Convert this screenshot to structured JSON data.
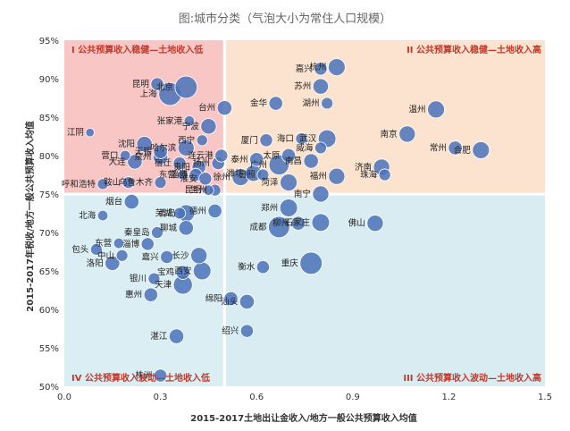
{
  "chart_data": {
    "type": "scatter",
    "title": "图:城市分类（气泡大小为常住人口规模）",
    "xlabel": "2015-2017土地出让金收入/地方一般公共预算收入均值",
    "ylabel": "2015-2017年税收/地方一般公共预算收入均值",
    "xlim": [
      0,
      1.5
    ],
    "ylim": [
      0.5,
      0.95
    ],
    "x_ticks": [
      0,
      0.3,
      0.6,
      0.9,
      1.2,
      1.5
    ],
    "x_tick_labels": [
      "0.0",
      "0.3",
      "0.6",
      "0.9",
      "1.2",
      "1.5"
    ],
    "y_ticks": [
      0.5,
      0.55,
      0.6,
      0.65,
      0.7,
      0.75,
      0.8,
      0.85,
      0.9,
      0.95
    ],
    "y_tick_labels": [
      "50%",
      "55%",
      "60%",
      "65%",
      "70%",
      "75%",
      "80%",
      "85%",
      "90%",
      "95%"
    ],
    "divider": {
      "x": 0.5,
      "y": 0.75
    },
    "quadrant_colors": {
      "I": "#f9c6c6",
      "II": "#fbe3cf",
      "III": "#d9ecf1",
      "IV": "#dbeef3"
    },
    "bubble_color": "#4a72b8",
    "quadrants": [
      {
        "id": "I",
        "label": "I 公共预算收入稳健—土地收入低",
        "position": "top-left"
      },
      {
        "id": "II",
        "label": "II 公共预算收入稳健—土地收入高",
        "position": "top-right"
      },
      {
        "id": "III",
        "label": "III 公共预算收入波动—土地收入高",
        "position": "bottom-right"
      },
      {
        "id": "IV",
        "label": "IV 公共预算收入波动—土地收入低",
        "position": "bottom-left"
      }
    ],
    "points": [
      {
        "name": "北京",
        "x": 0.38,
        "y": 0.889,
        "pop": 9
      },
      {
        "name": "上海",
        "x": 0.33,
        "y": 0.88,
        "pop": 9.5
      },
      {
        "name": "昆明",
        "x": 0.29,
        "y": 0.893,
        "pop": 2
      },
      {
        "name": "江阴",
        "x": 0.08,
        "y": 0.83,
        "pop": 0.5
      },
      {
        "name": "张家港",
        "x": 0.39,
        "y": 0.845,
        "pop": 1
      },
      {
        "name": "沈阳",
        "x": 0.25,
        "y": 0.815,
        "pop": 3.5
      },
      {
        "name": "哈尔滨",
        "x": 0.38,
        "y": 0.81,
        "pop": 4
      },
      {
        "name": "营口",
        "x": 0.19,
        "y": 0.8,
        "pop": 1
      },
      {
        "name": "无锡",
        "x": 0.3,
        "y": 0.805,
        "pop": 2.5
      },
      {
        "name": "西宁",
        "x": 0.43,
        "y": 0.82,
        "pop": 1.2
      },
      {
        "name": "大连",
        "x": 0.22,
        "y": 0.792,
        "pop": 3
      },
      {
        "name": "泉州",
        "x": 0.3,
        "y": 0.798,
        "pop": 3
      },
      {
        "name": "宿迁",
        "x": 0.36,
        "y": 0.79,
        "pop": 2
      },
      {
        "name": "贵阳",
        "x": 0.42,
        "y": 0.785,
        "pop": 2.5
      },
      {
        "name": "东营",
        "x": 0.37,
        "y": 0.775,
        "pop": 1
      },
      {
        "name": "鞍山",
        "x": 0.2,
        "y": 0.765,
        "pop": 1.5
      },
      {
        "name": "乌鲁木齐",
        "x": 0.3,
        "y": 0.765,
        "pop": 1.5
      },
      {
        "name": "淄博",
        "x": 0.41,
        "y": 0.775,
        "pop": 2
      },
      {
        "name": "呼和浩特",
        "x": 0.12,
        "y": 0.763,
        "pop": 1.2
      },
      {
        "name": "淮安",
        "x": 0.44,
        "y": 0.77,
        "pop": 2
      },
      {
        "name": "昆明",
        "x": 0.45,
        "y": 0.755,
        "pop": 1
      },
      {
        "name": "兰州",
        "x": 0.47,
        "y": 0.755,
        "pop": 1.5
      },
      {
        "name": "台州",
        "x": 0.5,
        "y": 0.862,
        "pop": 3
      },
      {
        "name": "宁波",
        "x": 0.45,
        "y": 0.838,
        "pop": 3.5
      },
      {
        "name": "扬州",
        "x": 0.48,
        "y": 0.79,
        "pop": 2
      },
      {
        "name": "连云港",
        "x": 0.49,
        "y": 0.8,
        "pop": 2
      },
      {
        "name": "嘉兴",
        "x": 0.8,
        "y": 0.913,
        "pop": 2
      },
      {
        "name": "杭州",
        "x": 0.85,
        "y": 0.915,
        "pop": 4.5
      },
      {
        "name": "苏州",
        "x": 0.8,
        "y": 0.89,
        "pop": 3.5
      },
      {
        "name": "湖州",
        "x": 0.82,
        "y": 0.868,
        "pop": 1.5
      },
      {
        "name": "温州",
        "x": 1.16,
        "y": 0.86,
        "pop": 4.5
      },
      {
        "name": "金华",
        "x": 0.66,
        "y": 0.868,
        "pop": 2.5
      },
      {
        "name": "南京",
        "x": 1.07,
        "y": 0.828,
        "pop": 4
      },
      {
        "name": "常州",
        "x": 1.22,
        "y": 0.81,
        "pop": 2.5
      },
      {
        "name": "合肥",
        "x": 1.3,
        "y": 0.807,
        "pop": 4.5
      },
      {
        "name": "厦门",
        "x": 0.63,
        "y": 0.82,
        "pop": 2
      },
      {
        "name": "海口",
        "x": 0.74,
        "y": 0.822,
        "pop": 1.5
      },
      {
        "name": "武汉",
        "x": 0.82,
        "y": 0.822,
        "pop": 5
      },
      {
        "name": "威海",
        "x": 0.8,
        "y": 0.81,
        "pop": 1.5
      },
      {
        "name": "泰州",
        "x": 0.6,
        "y": 0.795,
        "pop": 2.5
      },
      {
        "name": "太原",
        "x": 0.7,
        "y": 0.8,
        "pop": 2.5
      },
      {
        "name": "南昌",
        "x": 0.77,
        "y": 0.793,
        "pop": 3
      },
      {
        "name": "福州",
        "x": 0.85,
        "y": 0.773,
        "pop": 4
      },
      {
        "name": "济南",
        "x": 0.99,
        "y": 0.785,
        "pop": 4
      },
      {
        "name": "珠海",
        "x": 1.0,
        "y": 0.775,
        "pop": 1.5
      },
      {
        "name": "潍坊",
        "x": 0.59,
        "y": 0.777,
        "pop": 4
      },
      {
        "name": "徐州",
        "x": 0.55,
        "y": 0.772,
        "pop": 4.5
      },
      {
        "name": "日照",
        "x": 0.62,
        "y": 0.775,
        "pop": 1.5
      },
      {
        "name": "广州",
        "x": 0.67,
        "y": 0.788,
        "pop": 7
      },
      {
        "name": "菏泽",
        "x": 0.7,
        "y": 0.765,
        "pop": 4.5
      },
      {
        "name": "南宁",
        "x": 0.8,
        "y": 0.75,
        "pop": 4
      },
      {
        "name": "郑州",
        "x": 0.7,
        "y": 0.732,
        "pop": 5
      },
      {
        "name": "成都",
        "x": 0.67,
        "y": 0.707,
        "pop": 8
      },
      {
        "name": "柳州",
        "x": 0.73,
        "y": 0.712,
        "pop": 2.5
      },
      {
        "name": "石家庄",
        "x": 0.8,
        "y": 0.713,
        "pop": 5
      },
      {
        "name": "佛山",
        "x": 0.97,
        "y": 0.712,
        "pop": 4
      },
      {
        "name": "重庆",
        "x": 0.77,
        "y": 0.66,
        "pop": 9
      },
      {
        "name": "衡水",
        "x": 0.62,
        "y": 0.655,
        "pop": 2
      },
      {
        "name": "绵阳",
        "x": 0.52,
        "y": 0.614,
        "pop": 2.5
      },
      {
        "name": "汕头",
        "x": 0.57,
        "y": 0.61,
        "pop": 3
      },
      {
        "name": "绍兴",
        "x": 0.57,
        "y": 0.572,
        "pop": 2
      },
      {
        "name": "烟台",
        "x": 0.21,
        "y": 0.74,
        "pop": 3
      },
      {
        "name": "芜湖",
        "x": 0.36,
        "y": 0.725,
        "pop": 1.5
      },
      {
        "name": "青岛",
        "x": 0.38,
        "y": 0.725,
        "pop": 4.5
      },
      {
        "name": "德州",
        "x": 0.47,
        "y": 0.728,
        "pop": 2.5
      },
      {
        "name": "北海",
        "x": 0.12,
        "y": 0.722,
        "pop": 1
      },
      {
        "name": "秦皇岛",
        "x": 0.29,
        "y": 0.7,
        "pop": 1.5
      },
      {
        "name": "聊城",
        "x": 0.38,
        "y": 0.706,
        "pop": 3
      },
      {
        "name": "东营",
        "x": 0.17,
        "y": 0.686,
        "pop": 1
      },
      {
        "name": "淄博",
        "x": 0.26,
        "y": 0.685,
        "pop": 2
      },
      {
        "name": "包头",
        "x": 0.1,
        "y": 0.678,
        "pop": 1.5
      },
      {
        "name": "中山",
        "x": 0.18,
        "y": 0.67,
        "pop": 1.5
      },
      {
        "name": "嘉兴",
        "x": 0.32,
        "y": 0.668,
        "pop": 2
      },
      {
        "name": "长沙",
        "x": 0.42,
        "y": 0.67,
        "pop": 4
      },
      {
        "name": "洛阳",
        "x": 0.15,
        "y": 0.66,
        "pop": 3
      },
      {
        "name": "宝鸡",
        "x": 0.37,
        "y": 0.648,
        "pop": 2.5
      },
      {
        "name": "西安",
        "x": 0.43,
        "y": 0.65,
        "pop": 5
      },
      {
        "name": "银川",
        "x": 0.28,
        "y": 0.64,
        "pop": 1.5
      },
      {
        "name": "天津",
        "x": 0.37,
        "y": 0.632,
        "pop": 6
      },
      {
        "name": "惠州",
        "x": 0.27,
        "y": 0.619,
        "pop": 2.5
      },
      {
        "name": "湛江",
        "x": 0.35,
        "y": 0.565,
        "pop": 3
      },
      {
        "name": "株洲",
        "x": 0.3,
        "y": 0.514,
        "pop": 2
      }
    ]
  }
}
